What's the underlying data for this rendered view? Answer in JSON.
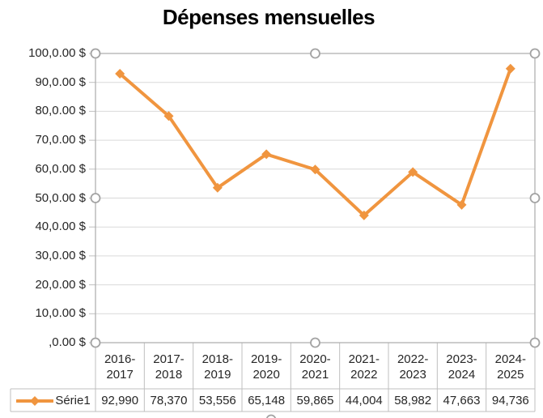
{
  "title": "Dépenses mensuelles",
  "legend": {
    "label": "Série1"
  },
  "chart_data": {
    "type": "line",
    "title": "Dépenses mensuelles",
    "categories": [
      "2016-2017",
      "2017-2018",
      "2018-2019",
      "2019-2020",
      "2020-2021",
      "2021-2022",
      "2022-2023",
      "2023-2024",
      "2024-2025"
    ],
    "series": [
      {
        "name": "Série1",
        "values": [
          92.99,
          78.37,
          53.556,
          65.148,
          59.865,
          44.004,
          58.982,
          47.663,
          94.736
        ],
        "display_values": [
          "92,990",
          "78,370",
          "53,556",
          "65,148",
          "59,865",
          "44,004",
          "58,982",
          "47,663",
          "94,736"
        ]
      }
    ],
    "ylim": [
      0,
      100
    ],
    "y_tick_step": 10,
    "y_tick_labels_top_to_bottom": [
      "100,0.00 $",
      "90,0.00 $",
      "80,0.00 $",
      "70,0.00 $",
      "60,0.00 $",
      "50,0.00 $",
      "40,0.00 $",
      "30,0.00 $",
      "20,0.00 $",
      "10,0.00 $",
      ",0.00 $"
    ],
    "grid": "horizontal-only",
    "marker": "diamond",
    "legend_position": "data-table-left",
    "data_table_shown": true,
    "plot_area_selected": true
  },
  "colors": {
    "series": "#F0953F",
    "gridline": "#D9D9D9",
    "axis_line": "#BFBFBF",
    "table_border": "#BFBFBF",
    "selection_border": "#ABABAB",
    "handle_fill": "#FFFFFF",
    "handle_stroke": "#A3A3A3",
    "title_text": "#000000",
    "label_text": "#262626",
    "background": "#FFFFFF"
  }
}
